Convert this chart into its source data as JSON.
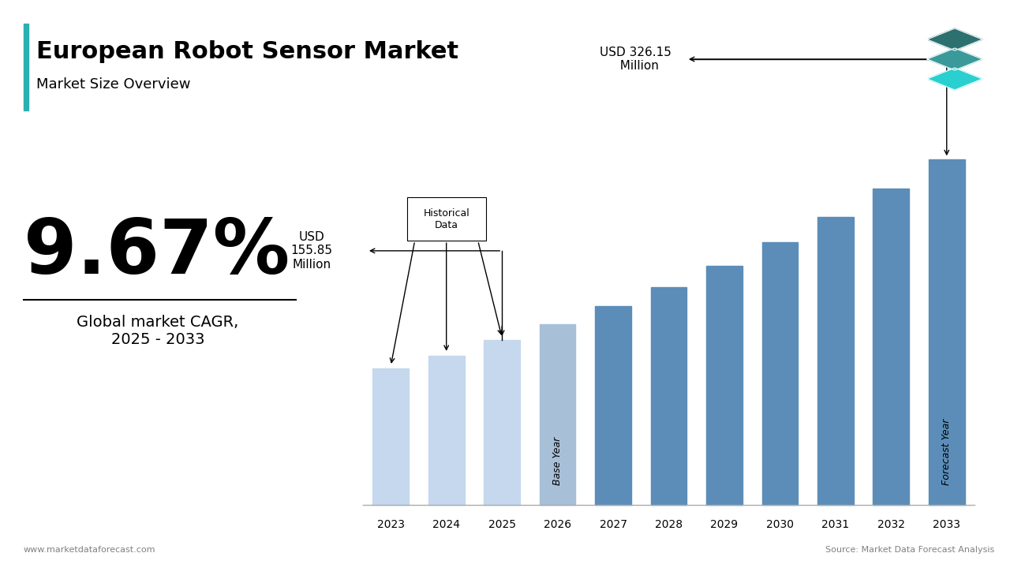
{
  "title": "European Robot Sensor Market",
  "subtitle": "Market Size Overview",
  "cagr": "9.67%",
  "cagr_label": "Global market CAGR,\n2025 - 2033",
  "years": [
    2023,
    2024,
    2025,
    2026,
    2027,
    2028,
    2029,
    2030,
    2031,
    2032,
    2033
  ],
  "values": [
    129,
    141,
    155.85,
    171,
    188,
    206,
    226,
    248,
    272,
    299,
    326.15
  ],
  "hist_data_label": "Historical\nData",
  "base_year_label": "Base Year",
  "forecast_year_label": "Forecast Year",
  "annotation_2025": "USD\n155.85\nMillion",
  "annotation_2033": "USD 326.15\nMillion",
  "footer_left": "www.marketdataforecast.com",
  "footer_right": "Source: Market Data Forecast Analysis",
  "accent_color": "#2ab0b0",
  "color_light": "#c5d8ed",
  "color_medium": "#a8bfd8",
  "color_dark": "#5b8db8",
  "background_color": "#ffffff"
}
